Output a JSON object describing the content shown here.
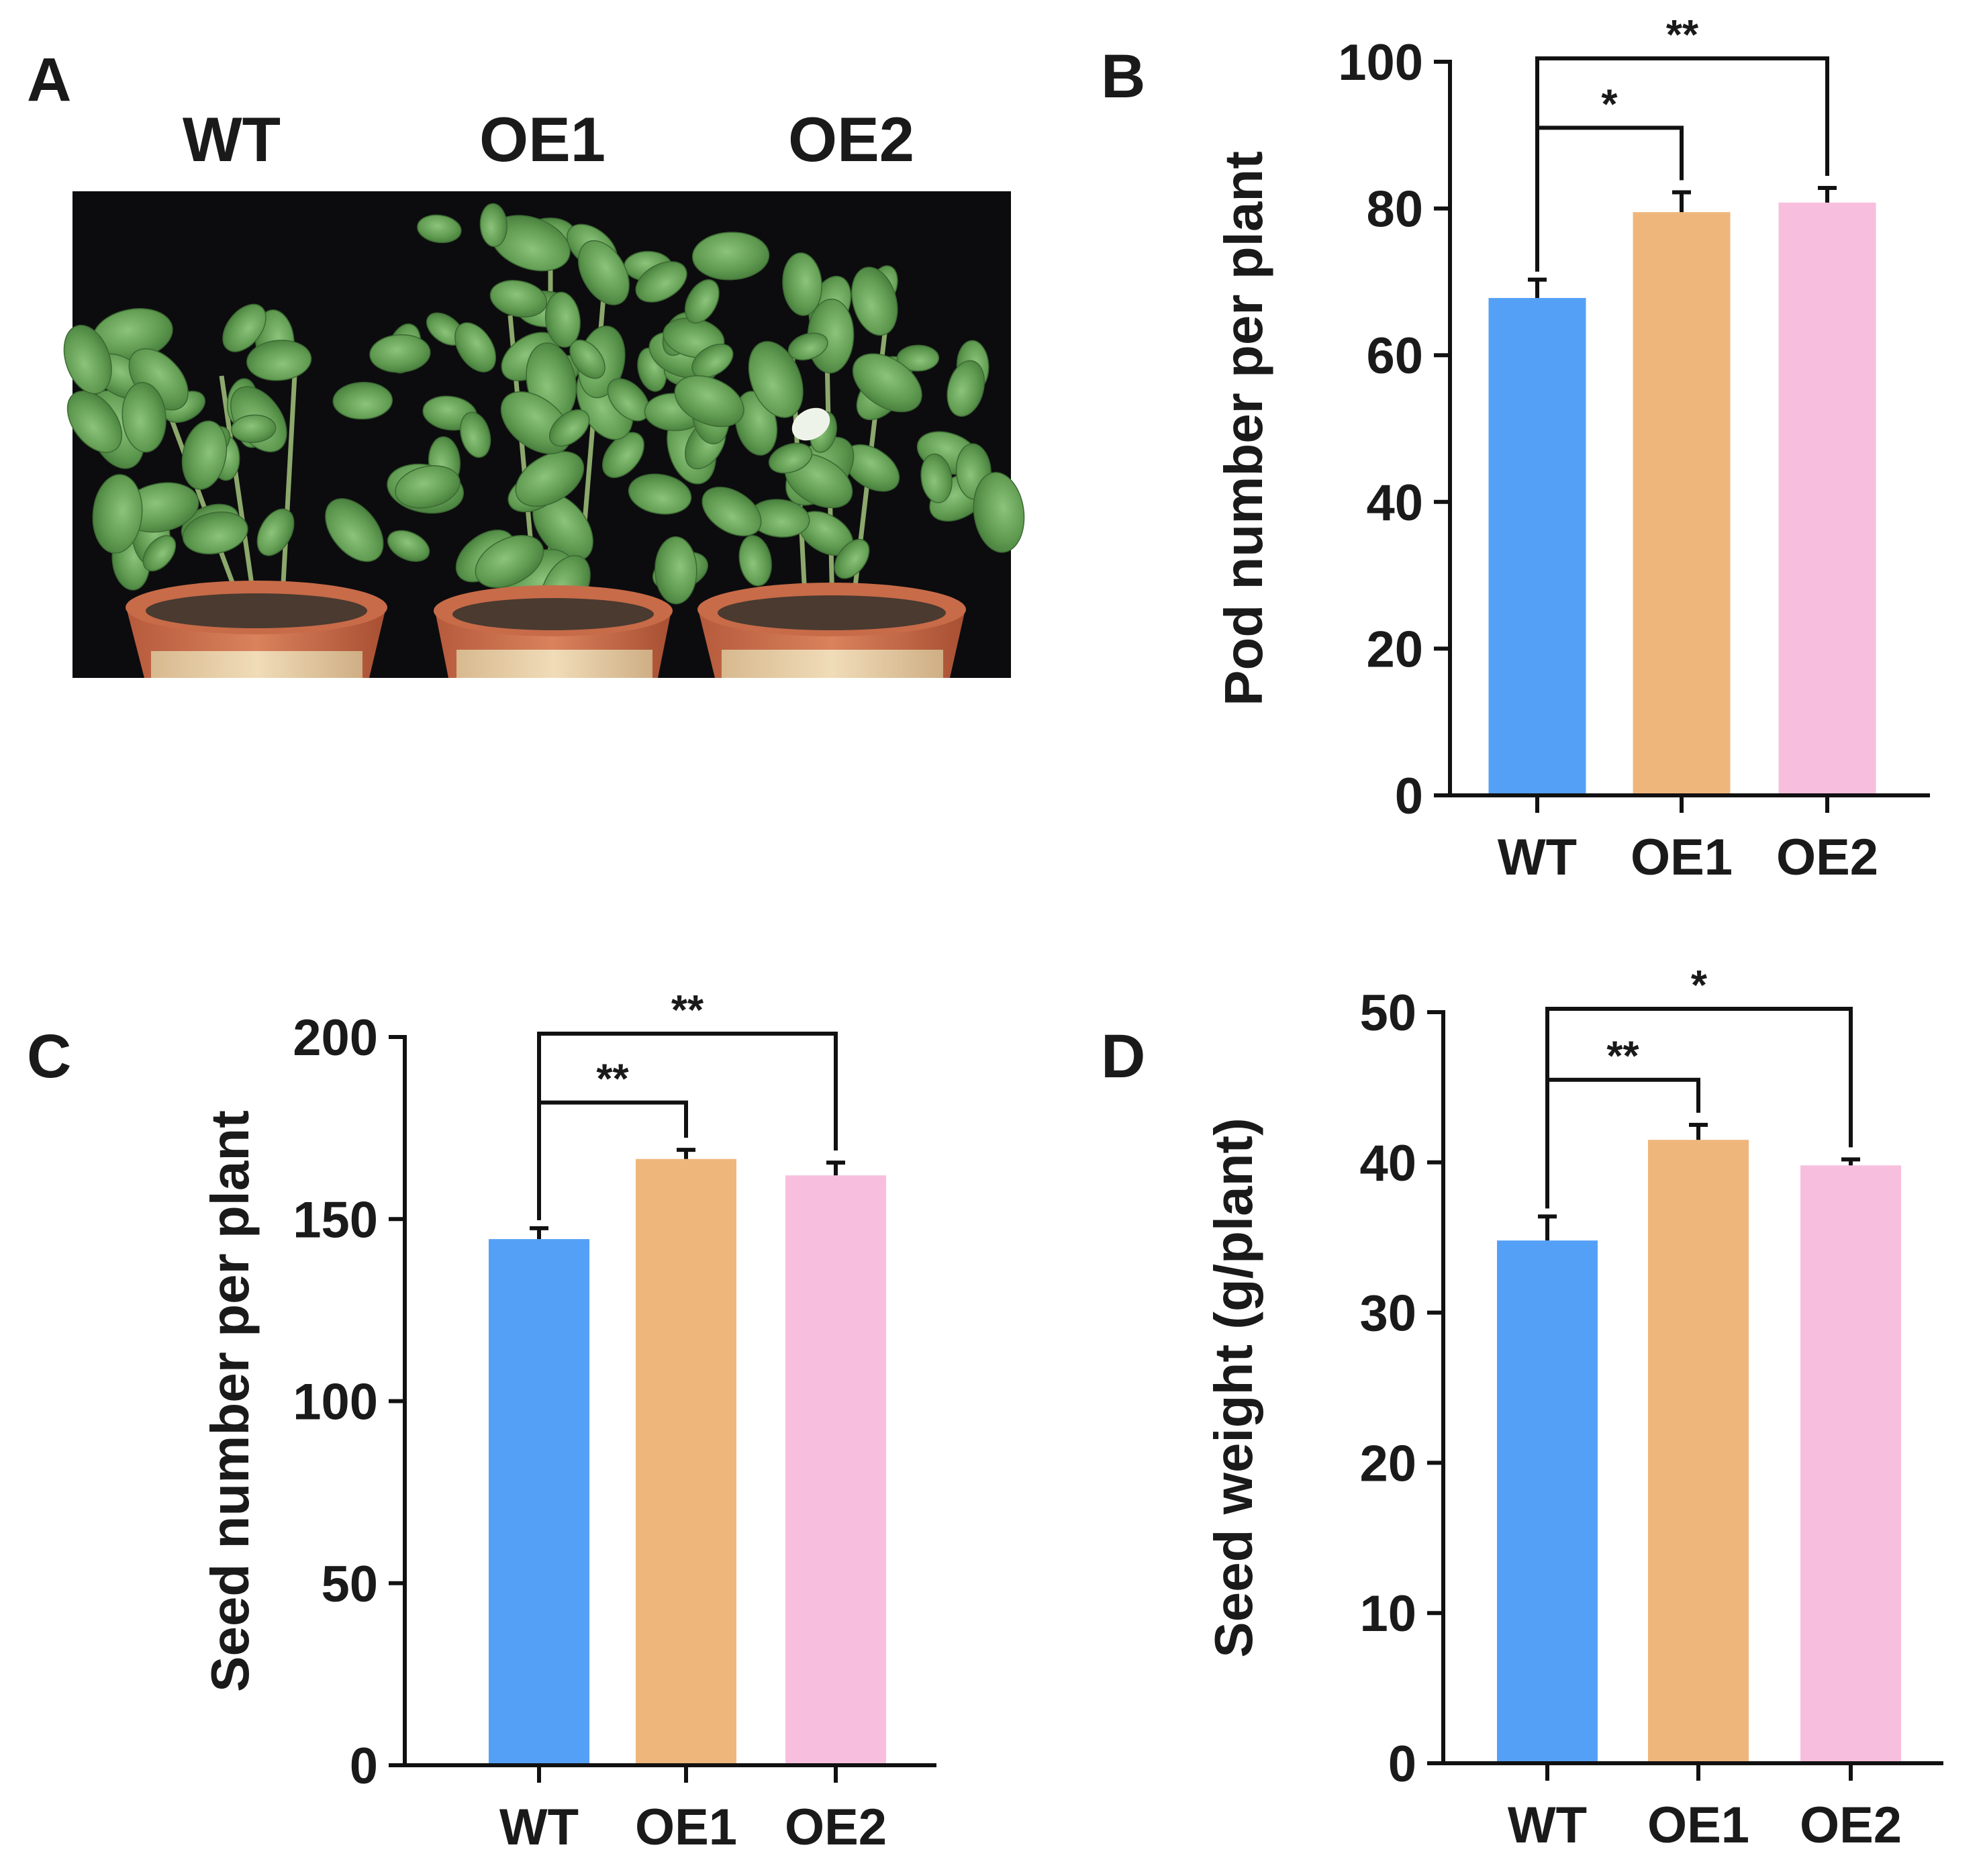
{
  "panelA": {
    "letter": "A",
    "labels": [
      "WT",
      "OE1",
      "OE2"
    ]
  },
  "chart_data": [
    {
      "panel": "B",
      "type": "bar",
      "categories": [
        "WT",
        "OE1",
        "OE2"
      ],
      "values": [
        67.8,
        79.5,
        80.8
      ],
      "errors": [
        2.5,
        2.7,
        2.0
      ],
      "colors": [
        "#55a0f7",
        "#efb67b",
        "#f8bedd"
      ],
      "xlabel": "",
      "ylabel": "Pod number per plant",
      "ylim": [
        0,
        100
      ],
      "yticks": [
        0,
        20,
        40,
        60,
        80,
        100
      ],
      "significance": [
        {
          "from": "WT",
          "to": "OE1",
          "label": "*"
        },
        {
          "from": "WT",
          "to": "OE2",
          "label": "**"
        }
      ]
    },
    {
      "panel": "C",
      "type": "bar",
      "categories": [
        "WT",
        "OE1",
        "OE2"
      ],
      "values": [
        144.5,
        166.5,
        162.0
      ],
      "errors": [
        3.0,
        2.5,
        3.5
      ],
      "colors": [
        "#55a0f7",
        "#efb67b",
        "#f8bedd"
      ],
      "xlabel": "",
      "ylabel": "Seed number per plant",
      "ylim": [
        0,
        200
      ],
      "yticks": [
        0,
        50,
        100,
        150,
        200
      ],
      "significance": [
        {
          "from": "WT",
          "to": "OE1",
          "label": "**"
        },
        {
          "from": "WT",
          "to": "OE2",
          "label": "**"
        }
      ]
    },
    {
      "panel": "D",
      "type": "bar",
      "categories": [
        "WT",
        "OE1",
        "OE2"
      ],
      "values": [
        34.8,
        41.5,
        39.8
      ],
      "errors": [
        1.6,
        1.0,
        0.4
      ],
      "colors": [
        "#55a0f7",
        "#efb67b",
        "#f8bedd"
      ],
      "xlabel": "",
      "ylabel": "Seed weight (g/plant)",
      "ylim": [
        0,
        50
      ],
      "yticks": [
        0,
        10,
        20,
        30,
        40,
        50
      ],
      "significance": [
        {
          "from": "WT",
          "to": "OE1",
          "label": "**"
        },
        {
          "from": "WT",
          "to": "OE2",
          "label": "*"
        }
      ]
    }
  ]
}
